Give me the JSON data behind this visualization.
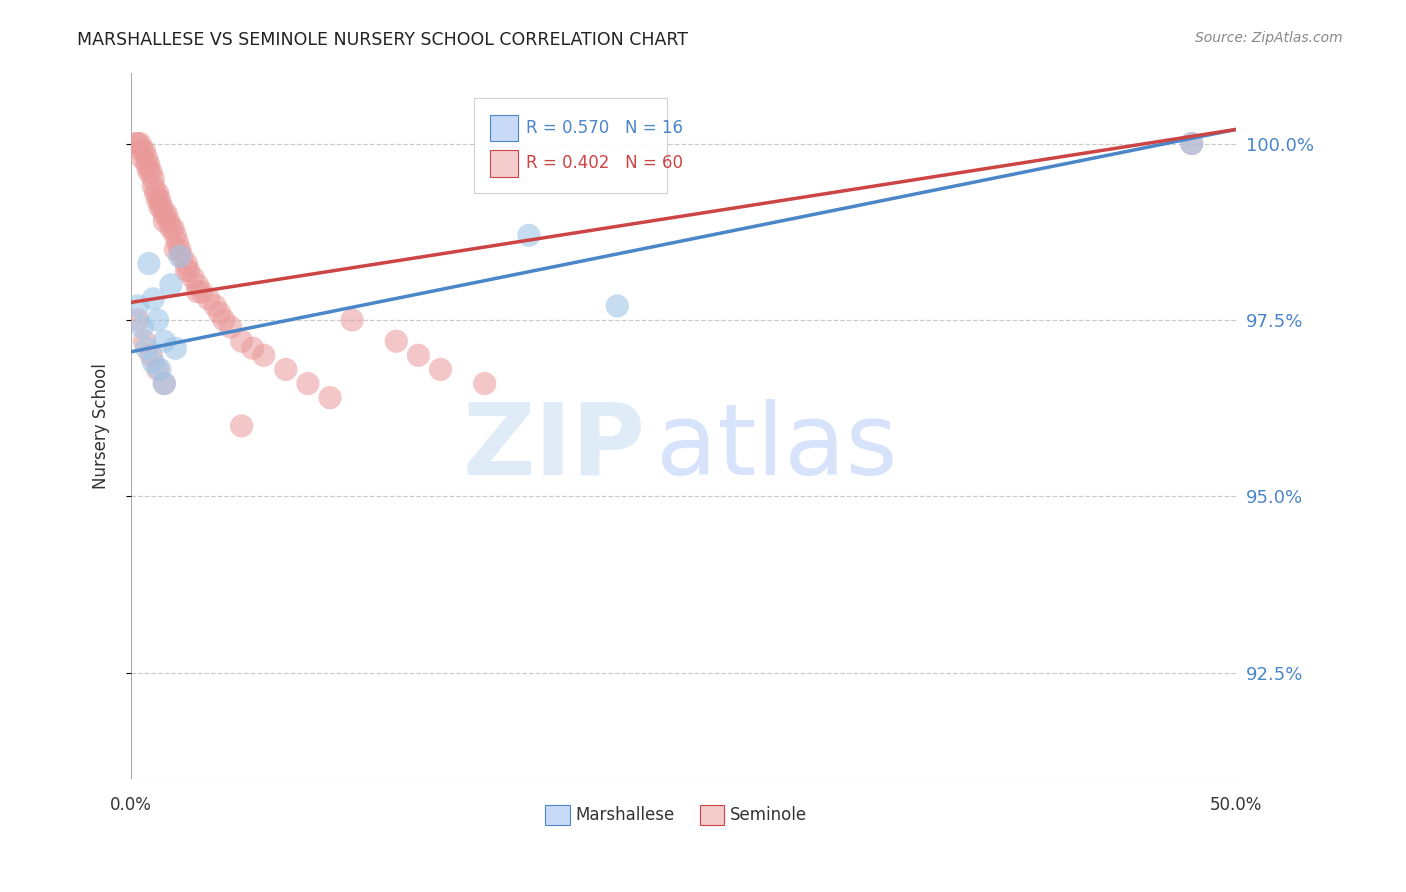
{
  "title": "MARSHALLESE VS SEMINOLE NURSERY SCHOOL CORRELATION CHART",
  "source": "Source: ZipAtlas.com",
  "ylabel": "Nursery School",
  "ytick_labels": [
    "100.0%",
    "97.5%",
    "95.0%",
    "92.5%"
  ],
  "ytick_values": [
    1.0,
    0.975,
    0.95,
    0.925
  ],
  "xlim": [
    0.0,
    0.5
  ],
  "ylim": [
    0.91,
    1.01
  ],
  "blue_R": 0.57,
  "blue_N": 16,
  "pink_R": 0.402,
  "pink_N": 60,
  "blue_color": "#9fc5e8",
  "pink_color": "#ea9999",
  "blue_line_color": "#4a86c8",
  "pink_line_color": "#cc4444",
  "legend_label_blue": "Marshallese",
  "legend_label_pink": "Seminole",
  "blue_scatter_x": [
    0.003,
    0.005,
    0.007,
    0.008,
    0.01,
    0.01,
    0.012,
    0.013,
    0.015,
    0.015,
    0.018,
    0.02,
    0.022,
    0.18,
    0.22,
    0.48
  ],
  "blue_scatter_y": [
    0.977,
    0.974,
    0.971,
    0.983,
    0.978,
    0.969,
    0.975,
    0.968,
    0.972,
    0.966,
    0.98,
    0.971,
    0.984,
    0.987,
    0.977,
    1.0
  ],
  "pink_scatter_x": [
    0.002,
    0.003,
    0.004,
    0.005,
    0.005,
    0.006,
    0.007,
    0.007,
    0.008,
    0.008,
    0.009,
    0.01,
    0.01,
    0.011,
    0.012,
    0.012,
    0.013,
    0.013,
    0.014,
    0.015,
    0.015,
    0.016,
    0.017,
    0.018,
    0.019,
    0.02,
    0.021,
    0.022,
    0.023,
    0.025,
    0.026,
    0.028,
    0.03,
    0.032,
    0.035,
    0.038,
    0.04,
    0.042,
    0.045,
    0.05,
    0.055,
    0.06,
    0.07,
    0.08,
    0.09,
    0.1,
    0.12,
    0.13,
    0.14,
    0.16,
    0.003,
    0.006,
    0.009,
    0.012,
    0.015,
    0.02,
    0.025,
    0.03,
    0.05,
    0.48
  ],
  "pink_scatter_y": [
    1.0,
    1.0,
    1.0,
    0.999,
    0.998,
    0.999,
    0.998,
    0.997,
    0.997,
    0.996,
    0.996,
    0.995,
    0.994,
    0.993,
    0.993,
    0.992,
    0.991,
    0.992,
    0.991,
    0.99,
    0.989,
    0.99,
    0.989,
    0.988,
    0.988,
    0.987,
    0.986,
    0.985,
    0.984,
    0.983,
    0.982,
    0.981,
    0.98,
    0.979,
    0.978,
    0.977,
    0.976,
    0.975,
    0.974,
    0.972,
    0.971,
    0.97,
    0.968,
    0.966,
    0.964,
    0.975,
    0.972,
    0.97,
    0.968,
    0.966,
    0.975,
    0.972,
    0.97,
    0.968,
    0.966,
    0.985,
    0.982,
    0.979,
    0.96,
    1.0
  ],
  "blue_trend_x0": 0.0,
  "blue_trend_y0": 0.9705,
  "blue_trend_x1": 0.5,
  "blue_trend_y1": 1.002,
  "pink_trend_x0": 0.0,
  "pink_trend_y0": 0.9775,
  "pink_trend_x1": 0.5,
  "pink_trend_y1": 1.002
}
